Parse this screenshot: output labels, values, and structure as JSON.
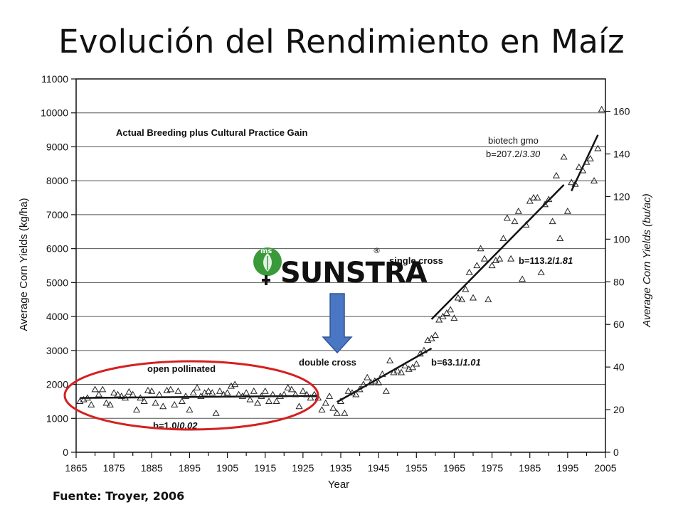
{
  "slide": {
    "title": "Evolución del Rendimiento en Maíz",
    "source": "Fuente: Troyer, 2006"
  },
  "logo": {
    "badge": "ms",
    "text": "SUNSTRA",
    "reg": "®"
  },
  "colors": {
    "ellipse": "#d42020",
    "arrow_fill": "#4a77c4",
    "arrow_stroke": "#2f5597",
    "logo_green": "#3a9a3a"
  },
  "chart_data": {
    "type": "scatter",
    "xlabel": "Year",
    "ylabel": "Average Corn Yields (kg/ha)",
    "y2label": "Average Corn Yields (bu/ac)",
    "xlim": [
      1865,
      2005
    ],
    "ylim": [
      0,
      11000
    ],
    "y2lim": [
      0,
      175.2
    ],
    "grid": "horizontal",
    "x_ticks": [
      1865,
      1875,
      1885,
      1895,
      1905,
      1915,
      1925,
      1935,
      1945,
      1955,
      1965,
      1975,
      1985,
      1995,
      2005
    ],
    "y_ticks": [
      0,
      1000,
      2000,
      3000,
      4000,
      5000,
      6000,
      7000,
      8000,
      9000,
      10000,
      11000
    ],
    "y2_ticks": [
      0,
      20,
      40,
      60,
      80,
      100,
      120,
      140,
      160
    ],
    "heading": "Actual Breeding plus Cultural Practice Gain",
    "eras": [
      {
        "name": "open pollinated",
        "slope_label": "b=1.0/",
        "slope_italic": "0.02",
        "x": [
          1866,
          1929
        ],
        "y": [
          1600,
          1663
        ]
      },
      {
        "name": "double cross",
        "slope_label": "b=63.1/",
        "slope_italic": "1.01",
        "x": [
          1934,
          1959
        ],
        "y": [
          1480,
          3060
        ]
      },
      {
        "name": "single cross",
        "slope_label": "b=113.2/",
        "slope_italic": "1.81",
        "x": [
          1959,
          1994
        ],
        "y": [
          3920,
          7880
        ]
      },
      {
        "name": "biotech gmo",
        "slope_label": "b=207.2/",
        "slope_italic": "3.30",
        "x": [
          1996,
          2003
        ],
        "y": [
          7700,
          9350
        ]
      }
    ],
    "points": [
      [
        1866,
        1500
      ],
      [
        1867,
        1550
      ],
      [
        1868,
        1600
      ],
      [
        1869,
        1400
      ],
      [
        1870,
        1850
      ],
      [
        1871,
        1700
      ],
      [
        1872,
        1850
      ],
      [
        1873,
        1450
      ],
      [
        1874,
        1400
      ],
      [
        1875,
        1750
      ],
      [
        1876,
        1700
      ],
      [
        1877,
        1650
      ],
      [
        1878,
        1600
      ],
      [
        1879,
        1780
      ],
      [
        1880,
        1700
      ],
      [
        1881,
        1250
      ],
      [
        1882,
        1600
      ],
      [
        1883,
        1500
      ],
      [
        1884,
        1820
      ],
      [
        1885,
        1800
      ],
      [
        1886,
        1450
      ],
      [
        1887,
        1700
      ],
      [
        1888,
        1350
      ],
      [
        1889,
        1820
      ],
      [
        1890,
        1850
      ],
      [
        1891,
        1400
      ],
      [
        1892,
        1800
      ],
      [
        1893,
        1500
      ],
      [
        1894,
        1650
      ],
      [
        1895,
        1250
      ],
      [
        1896,
        1750
      ],
      [
        1897,
        1900
      ],
      [
        1898,
        1650
      ],
      [
        1899,
        1750
      ],
      [
        1900,
        1800
      ],
      [
        1901,
        1750
      ],
      [
        1902,
        1150
      ],
      [
        1903,
        1800
      ],
      [
        1904,
        1700
      ],
      [
        1905,
        1750
      ],
      [
        1906,
        1950
      ],
      [
        1907,
        2000
      ],
      [
        1908,
        1700
      ],
      [
        1909,
        1650
      ],
      [
        1910,
        1750
      ],
      [
        1911,
        1550
      ],
      [
        1912,
        1800
      ],
      [
        1913,
        1450
      ],
      [
        1914,
        1650
      ],
      [
        1915,
        1800
      ],
      [
        1916,
        1500
      ],
      [
        1917,
        1700
      ],
      [
        1918,
        1500
      ],
      [
        1919,
        1650
      ],
      [
        1920,
        1700
      ],
      [
        1921,
        1900
      ],
      [
        1922,
        1850
      ],
      [
        1923,
        1700
      ],
      [
        1924,
        1350
      ],
      [
        1925,
        1800
      ],
      [
        1926,
        1700
      ],
      [
        1927,
        1600
      ],
      [
        1928,
        1700
      ],
      [
        1929,
        1600
      ],
      [
        1930,
        1250
      ],
      [
        1931,
        1450
      ],
      [
        1932,
        1650
      ],
      [
        1933,
        1300
      ],
      [
        1934,
        1150
      ],
      [
        1935,
        1500
      ],
      [
        1936,
        1150
      ],
      [
        1937,
        1800
      ],
      [
        1938,
        1750
      ],
      [
        1939,
        1700
      ],
      [
        1940,
        1850
      ],
      [
        1941,
        2000
      ],
      [
        1942,
        2200
      ],
      [
        1943,
        2050
      ],
      [
        1944,
        2100
      ],
      [
        1945,
        2050
      ],
      [
        1946,
        2300
      ],
      [
        1947,
        1800
      ],
      [
        1948,
        2700
      ],
      [
        1949,
        2350
      ],
      [
        1950,
        2400
      ],
      [
        1951,
        2350
      ],
      [
        1952,
        2550
      ],
      [
        1953,
        2450
      ],
      [
        1954,
        2500
      ],
      [
        1955,
        2600
      ],
      [
        1956,
        2900
      ],
      [
        1957,
        3000
      ],
      [
        1958,
        3300
      ],
      [
        1959,
        3350
      ],
      [
        1960,
        3450
      ],
      [
        1961,
        3900
      ],
      [
        1962,
        4000
      ],
      [
        1963,
        4100
      ],
      [
        1964,
        4200
      ],
      [
        1965,
        3950
      ],
      [
        1966,
        4550
      ],
      [
        1967,
        4500
      ],
      [
        1968,
        4800
      ],
      [
        1969,
        5300
      ],
      [
        1970,
        4550
      ],
      [
        1971,
        5500
      ],
      [
        1972,
        6000
      ],
      [
        1973,
        5700
      ],
      [
        1974,
        4500
      ],
      [
        1975,
        5500
      ],
      [
        1976,
        5650
      ],
      [
        1977,
        5700
      ],
      [
        1978,
        6300
      ],
      [
        1979,
        6900
      ],
      [
        1980,
        5700
      ],
      [
        1981,
        6800
      ],
      [
        1982,
        7100
      ],
      [
        1983,
        5100
      ],
      [
        1984,
        6700
      ],
      [
        1985,
        7400
      ],
      [
        1986,
        7500
      ],
      [
        1987,
        7500
      ],
      [
        1988,
        5300
      ],
      [
        1989,
        7300
      ],
      [
        1990,
        7450
      ],
      [
        1991,
        6800
      ],
      [
        1992,
        8150
      ],
      [
        1993,
        6300
      ],
      [
        1994,
        8700
      ],
      [
        1995,
        7100
      ],
      [
        1996,
        7950
      ],
      [
        1997,
        7900
      ],
      [
        1998,
        8400
      ],
      [
        1999,
        8300
      ],
      [
        2000,
        8550
      ],
      [
        2001,
        8650
      ],
      [
        2002,
        8000
      ],
      [
        2003,
        8950
      ],
      [
        2004,
        10100
      ]
    ]
  }
}
